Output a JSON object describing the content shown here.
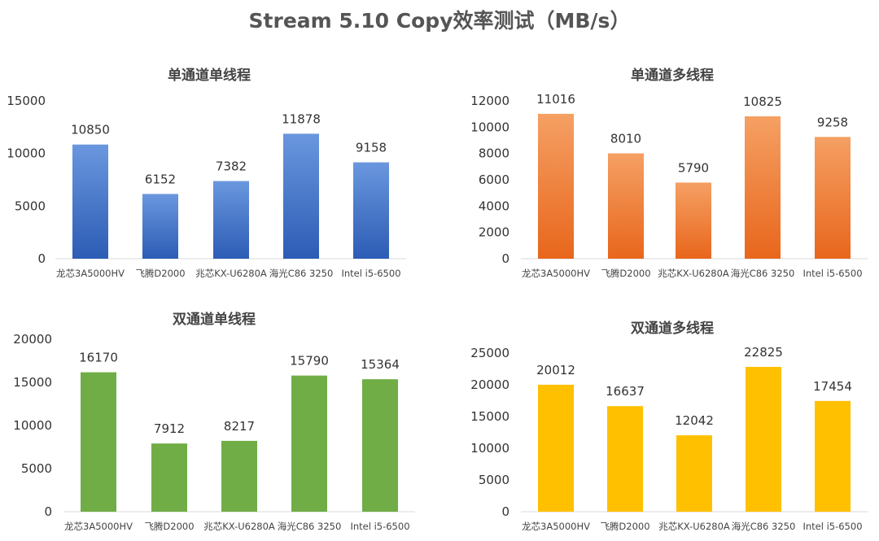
{
  "title": "Stream 5.10 Copy效率测试（MB/s）",
  "chart_data": [
    {
      "type": "bar",
      "title": "单通道单线程",
      "categories": [
        "龙芯3A5000HV",
        "飞腾D2000",
        "兆芯KX-U6280A",
        "海光C86 3250",
        "Intel i5-6500"
      ],
      "values": [
        10850,
        6152,
        7382,
        11878,
        9158
      ],
      "ylim": [
        0,
        15000
      ],
      "yticks": [
        0,
        5000,
        10000,
        15000
      ],
      "color_top": "#6a97de",
      "color_bottom": "#2c5cb5",
      "grid": false
    },
    {
      "type": "bar",
      "title": "单通道多线程",
      "categories": [
        "龙芯3A5000HV",
        "飞腾D2000",
        "兆芯KX-U6280A",
        "海光C86 3250",
        "Intel i5-6500"
      ],
      "values": [
        11016,
        8010,
        5790,
        10825,
        9258
      ],
      "ylim": [
        0,
        12000
      ],
      "yticks": [
        0,
        2000,
        4000,
        6000,
        8000,
        10000,
        12000
      ],
      "color_top": "#f5a064",
      "color_bottom": "#e8661c",
      "grid": false
    },
    {
      "type": "bar",
      "title": "双通道单线程",
      "categories": [
        "龙芯3A5000HV",
        "飞腾D2000",
        "兆芯KX-U6280A",
        "海光C86 3250",
        "Intel i5-6500"
      ],
      "values": [
        16170,
        7912,
        8217,
        15790,
        15364
      ],
      "ylim": [
        0,
        20000
      ],
      "yticks": [
        0,
        5000,
        10000,
        15000,
        20000
      ],
      "color_top": "#70ad47",
      "color_bottom": "#70ad47",
      "grid": false
    },
    {
      "type": "bar",
      "title": "双通道多线程",
      "categories": [
        "龙芯3A5000HV",
        "飞腾D2000",
        "兆芯KX-U6280A",
        "海光C86 3250",
        "Intel i5-6500"
      ],
      "values": [
        20012,
        16637,
        12042,
        22825,
        17454
      ],
      "ylim": [
        0,
        25000
      ],
      "yticks": [
        0,
        5000,
        10000,
        15000,
        20000,
        25000
      ],
      "color_top": "#ffc000",
      "color_bottom": "#ffc000",
      "grid": false
    }
  ]
}
